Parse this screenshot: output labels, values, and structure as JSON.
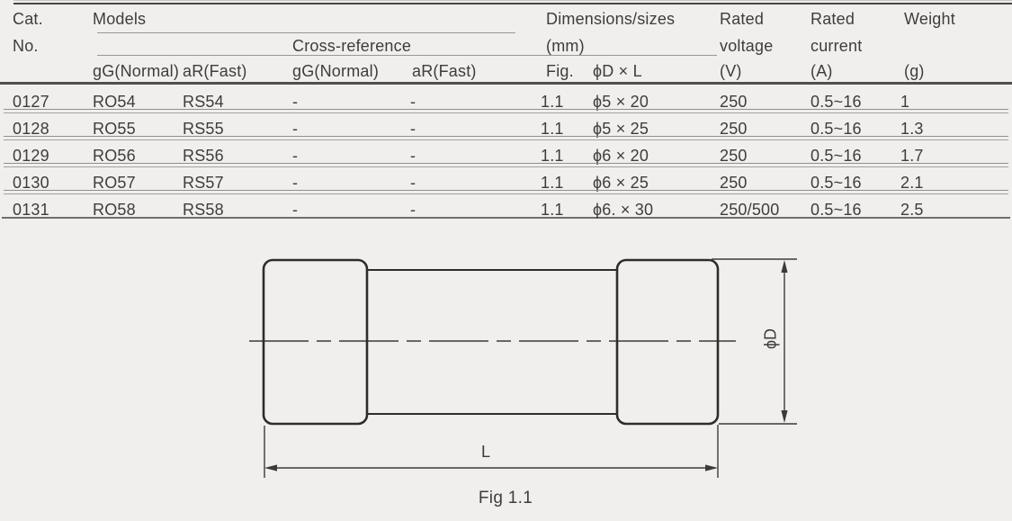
{
  "table": {
    "header": {
      "cat_line1": "Cat.",
      "cat_line2": "No.",
      "models": "Models",
      "cross_reference": "Cross-reference",
      "dimensions_line1": "Dimensions/sizes",
      "dimensions_line2": "(mm)",
      "rated_voltage_line1": "Rated",
      "rated_voltage_line2": "voltage",
      "rated_voltage_unit": "(V)",
      "rated_current_line1": "Rated",
      "rated_current_line2": "current",
      "rated_current_unit": "(A)",
      "weight": "Weight",
      "weight_unit": "(g)",
      "sub": {
        "models_gg": "gG(Normal)",
        "models_ar": "aR(Fast)",
        "cross_gg": "gG(Normal)",
        "cross_ar": "aR(Fast)",
        "fig": "Fig.",
        "size": "ϕD × L"
      }
    },
    "rows": [
      {
        "cat": "0127",
        "gg": "RO54",
        "ar": "RS54",
        "cross_gg": "-",
        "cross_ar": "-",
        "fig": "1.1",
        "size": "ϕ5 × 20",
        "voltage": "250",
        "current": "0.5~16",
        "weight": "1"
      },
      {
        "cat": "0128",
        "gg": "RO55",
        "ar": "RS55",
        "cross_gg": "-",
        "cross_ar": "-",
        "fig": "1.1",
        "size": "ϕ5 × 25",
        "voltage": "250",
        "current": "0.5~16",
        "weight": "1.3"
      },
      {
        "cat": "0129",
        "gg": "RO56",
        "ar": "RS56",
        "cross_gg": "-",
        "cross_ar": "-",
        "fig": "1.1",
        "size": "ϕ6 × 20",
        "voltage": "250",
        "current": "0.5~16",
        "weight": "1.7"
      },
      {
        "cat": "0130",
        "gg": "RO57",
        "ar": "RS57",
        "cross_gg": "-",
        "cross_ar": "-",
        "fig": "1.1",
        "size": "ϕ6 × 25",
        "voltage": "250",
        "current": "0.5~16",
        "weight": "2.1"
      },
      {
        "cat": "0131",
        "gg": "RO58",
        "ar": "RS58",
        "cross_gg": "-",
        "cross_ar": "-",
        "fig": "1.1",
        "size": "ϕ6. × 30",
        "voltage": "250/500",
        "current": "0.5~16",
        "weight": "2.5"
      }
    ]
  },
  "diagram": {
    "diameter_label": "ϕD",
    "length_label": "L",
    "caption": "Fig 1.1"
  },
  "colors": {
    "bg": "#f0efed",
    "ink": "#3d3d3d",
    "rule-light": "#979797",
    "rule-dark": "#464646",
    "rule-mid": "#6e6e6e",
    "draw-ink": "#2d2d2d",
    "dim-ink": "#3a3a3a"
  }
}
